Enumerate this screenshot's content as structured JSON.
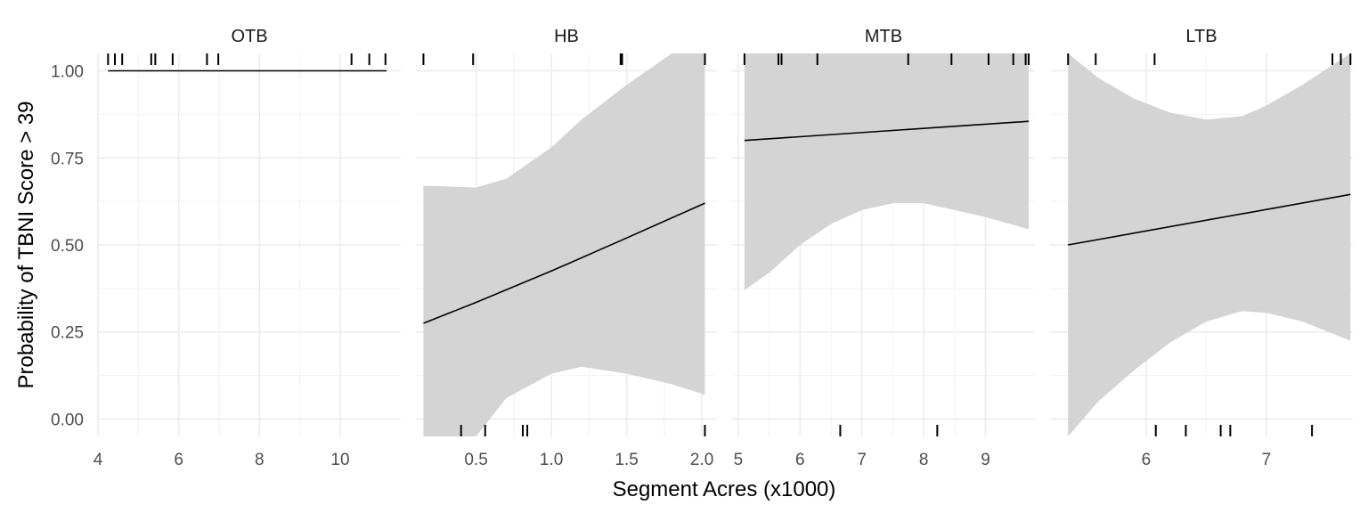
{
  "chart_data": {
    "type": "line",
    "xlabel": "Segment Acres (x1000)",
    "ylabel": "Probability of TBNI Score > 39",
    "ylim": [
      -0.05,
      1.05
    ],
    "y_ticks": [
      0.0,
      0.25,
      0.5,
      0.75,
      1.0
    ],
    "y_tick_labels": [
      "0.00",
      "0.25",
      "0.50",
      "0.75",
      "1.00"
    ],
    "grid": true,
    "line_color": "#000000",
    "ribbon_color": "#d4d4d4",
    "panels": [
      {
        "title": "OTB",
        "xlim": [
          4.0,
          11.5
        ],
        "x_ticks": [
          4,
          6,
          8,
          10
        ],
        "x_tick_labels": [
          "4",
          "6",
          "8",
          "10"
        ],
        "fit": {
          "x": [
            4.25,
            11.15
          ],
          "y": [
            1.0,
            1.0
          ]
        },
        "ribbon": null,
        "rug_top": [
          4.25,
          4.42,
          4.6,
          5.32,
          5.42,
          5.85,
          6.7,
          6.98,
          10.28,
          10.72,
          11.12
        ],
        "rug_bottom": []
      },
      {
        "title": "HB",
        "xlim": [
          0.1,
          2.1
        ],
        "x_ticks": [
          0.5,
          1.0,
          1.5,
          2.0
        ],
        "x_tick_labels": [
          "0.5",
          "1.0",
          "1.5",
          "2.0"
        ],
        "fit": {
          "x": [
            0.15,
            0.5,
            1.0,
            1.5,
            2.02
          ],
          "y": [
            0.275,
            0.335,
            0.425,
            0.52,
            0.62
          ]
        },
        "ribbon": {
          "x": [
            0.15,
            0.5,
            0.7,
            1.0,
            1.2,
            1.5,
            1.8,
            2.02
          ],
          "lower": [
            -0.05,
            -0.05,
            0.06,
            0.13,
            0.15,
            0.13,
            0.1,
            0.07
          ],
          "upper": [
            0.67,
            0.665,
            0.69,
            0.78,
            0.86,
            0.96,
            1.05,
            1.05
          ]
        },
        "rug_top": [
          0.15,
          0.48,
          1.46,
          1.47,
          2.02
        ],
        "rug_bottom": [
          0.4,
          0.56,
          0.81,
          0.84,
          2.02
        ]
      },
      {
        "title": "MTB",
        "xlim": [
          4.9,
          9.8
        ],
        "x_ticks": [
          5,
          6,
          7,
          8,
          9
        ],
        "x_tick_labels": [
          "5",
          "6",
          "7",
          "8",
          "9"
        ],
        "fit": {
          "x": [
            5.1,
            9.7
          ],
          "y": [
            0.8,
            0.855
          ]
        },
        "ribbon": {
          "x": [
            5.1,
            5.5,
            6.0,
            6.5,
            7.0,
            7.5,
            8.0,
            8.5,
            9.0,
            9.7
          ],
          "lower": [
            0.37,
            0.42,
            0.5,
            0.56,
            0.6,
            0.62,
            0.62,
            0.6,
            0.58,
            0.545
          ],
          "upper": [
            1.05,
            1.05,
            1.05,
            1.05,
            1.05,
            1.05,
            1.05,
            1.05,
            1.05,
            1.05
          ]
        },
        "rug_top": [
          5.1,
          5.65,
          5.7,
          6.28,
          7.75,
          8.45,
          9.05,
          9.45,
          9.65,
          9.7
        ],
        "rug_bottom": [
          6.65,
          8.22
        ]
      },
      {
        "title": "LTB",
        "xlim": [
          5.2,
          7.72
        ],
        "x_ticks": [
          6,
          7
        ],
        "x_tick_labels": [
          "6",
          "7"
        ],
        "fit": {
          "x": [
            5.35,
            7.7
          ],
          "y": [
            0.5,
            0.645
          ]
        },
        "ribbon": {
          "x": [
            5.35,
            5.6,
            5.9,
            6.2,
            6.5,
            6.8,
            7.0,
            7.3,
            7.7
          ],
          "lower": [
            -0.05,
            0.05,
            0.14,
            0.22,
            0.28,
            0.31,
            0.305,
            0.28,
            0.225
          ],
          "upper": [
            1.05,
            0.98,
            0.92,
            0.88,
            0.86,
            0.87,
            0.9,
            0.96,
            1.05
          ]
        },
        "rug_top": [
          5.35,
          5.58,
          6.07,
          7.55,
          7.62,
          7.7
        ],
        "rug_bottom": [
          6.08,
          6.33,
          6.62,
          6.7,
          7.38
        ]
      }
    ]
  }
}
